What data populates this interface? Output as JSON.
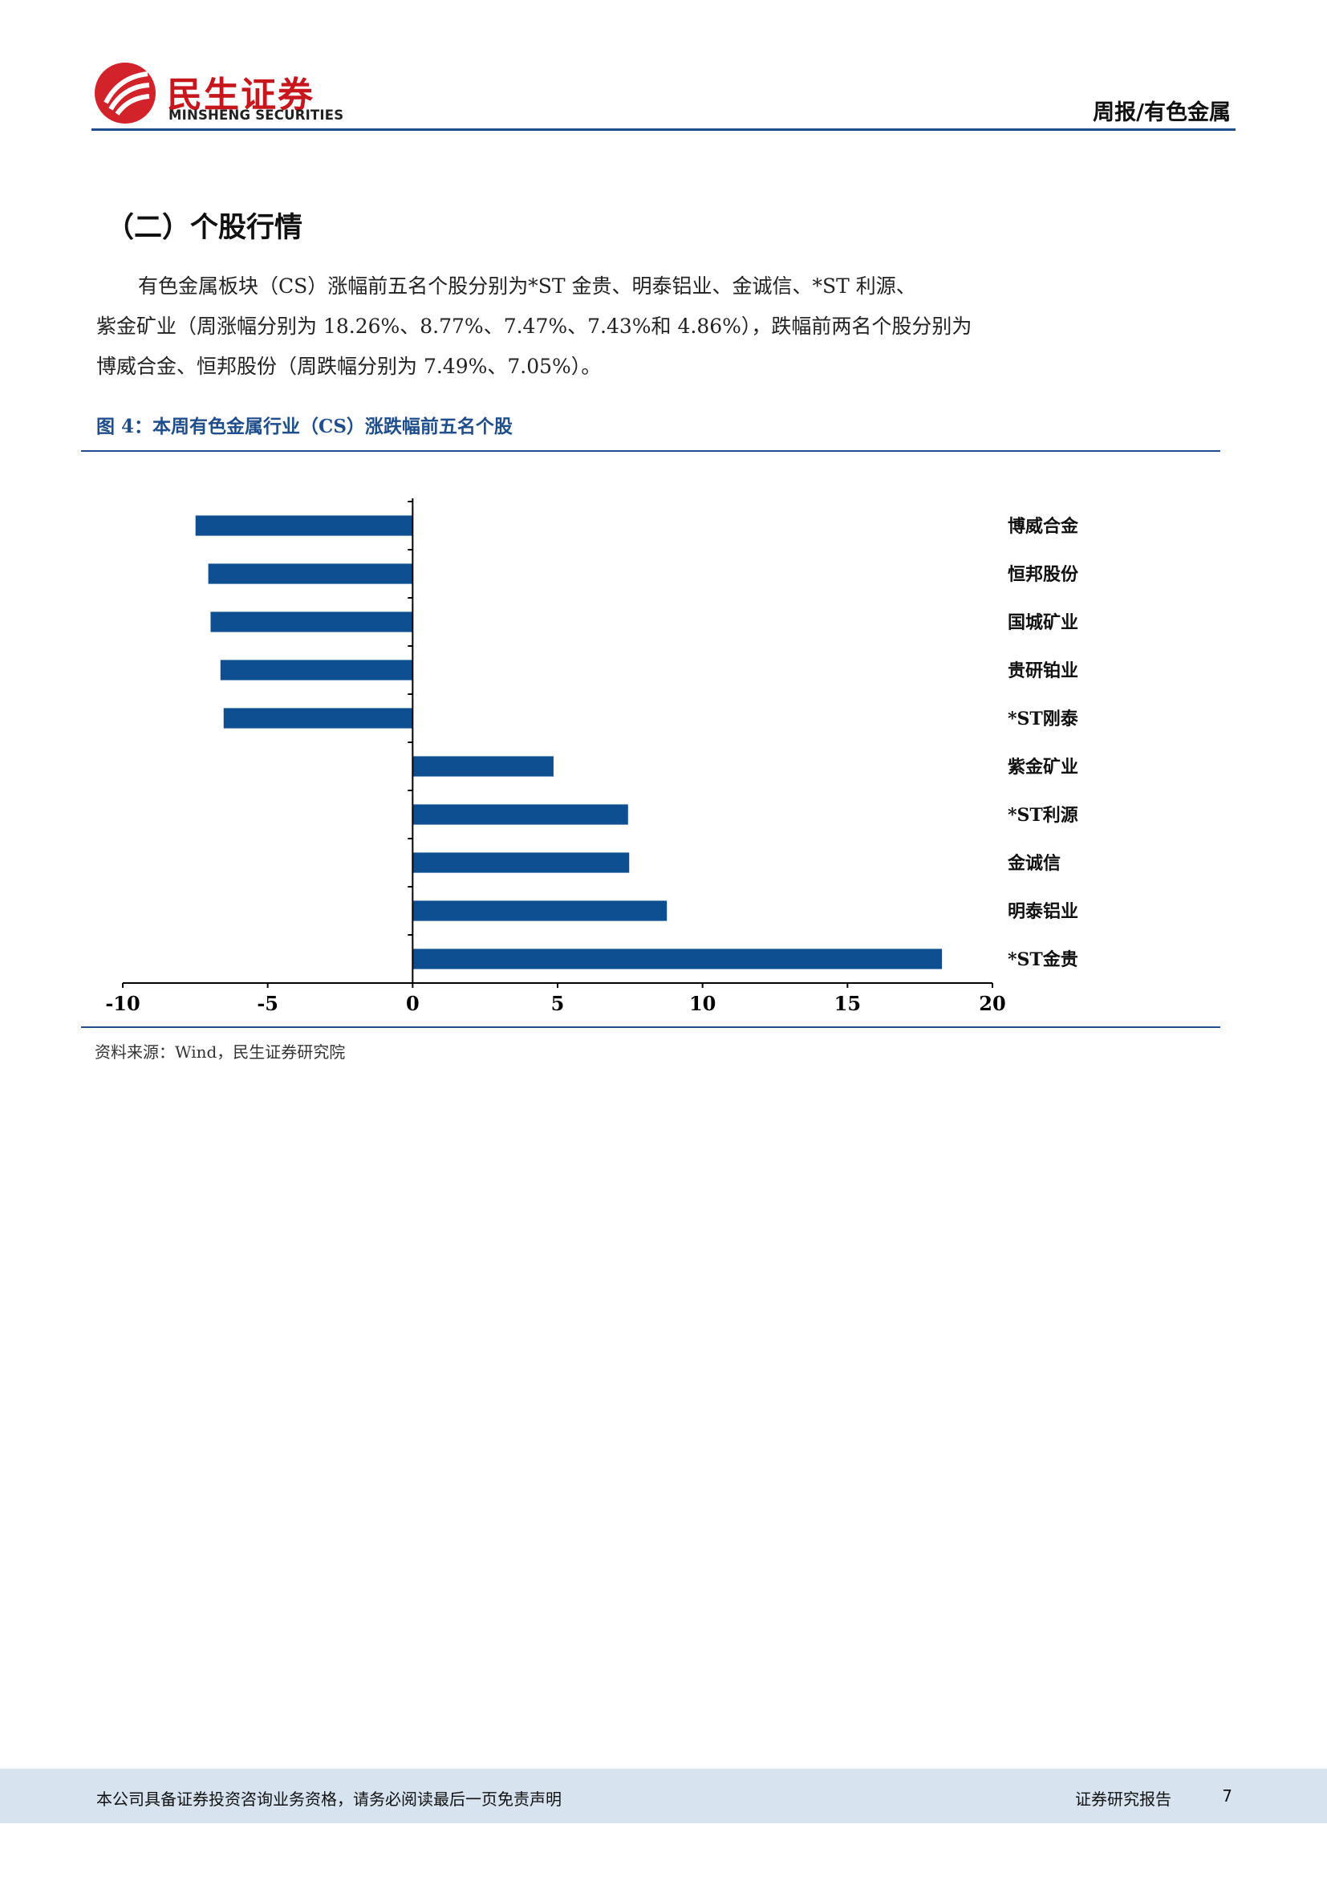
{
  "header": {
    "logo_cn": "民生证券",
    "logo_en": "MINSHENG SECURITIES",
    "right_title": "周报/有色金属",
    "brand_color": "#c8161d",
    "rule_color": "#1f4e8c"
  },
  "section": {
    "title": "（二）个股行情",
    "paragraph_lines": [
      "有色金属板块（CS）涨幅前五名个股分别为*ST 金贵、明泰铝业、金诚信、*ST 利源、",
      "紫金矿业（周涨幅分别为 18.26%、8.77%、7.47%、7.43%和 4.86%），跌幅前两名个股分别为",
      "博威合金、恒邦股份（周跌幅分别为 7.49%、7.05%）。"
    ]
  },
  "figure": {
    "title": "图 4：本周有色金属行业（CS）涨跌幅前五名个股",
    "source": "资料来源：Wind，民生证券研究院"
  },
  "chart_data": {
    "type": "bar",
    "orientation": "horizontal",
    "categories": [
      "博威合金",
      "恒邦股份",
      "国城矿业",
      "贵研铂业",
      "*ST刚泰",
      "紫金矿业",
      "*ST利源",
      "金诚信",
      "明泰铝业",
      "*ST金贵"
    ],
    "values": [
      -7.49,
      -7.05,
      -6.97,
      -6.63,
      -6.52,
      4.86,
      7.43,
      7.47,
      8.77,
      18.26
    ],
    "xlim": [
      -10,
      20
    ],
    "xticks": [
      "-10",
      "-5",
      "0",
      "5",
      "10",
      "15",
      "20"
    ],
    "bar_color": "#0e4f92",
    "grid": false,
    "legend": "none",
    "title": "",
    "xlabel": "",
    "ylabel": ""
  },
  "footer": {
    "disclaimer": "本公司具备证券投资咨询业务资格，请务必阅读最后一页免责声明",
    "report_type": "证券研究报告",
    "page_number": "7",
    "background": "#d7e3ef"
  }
}
